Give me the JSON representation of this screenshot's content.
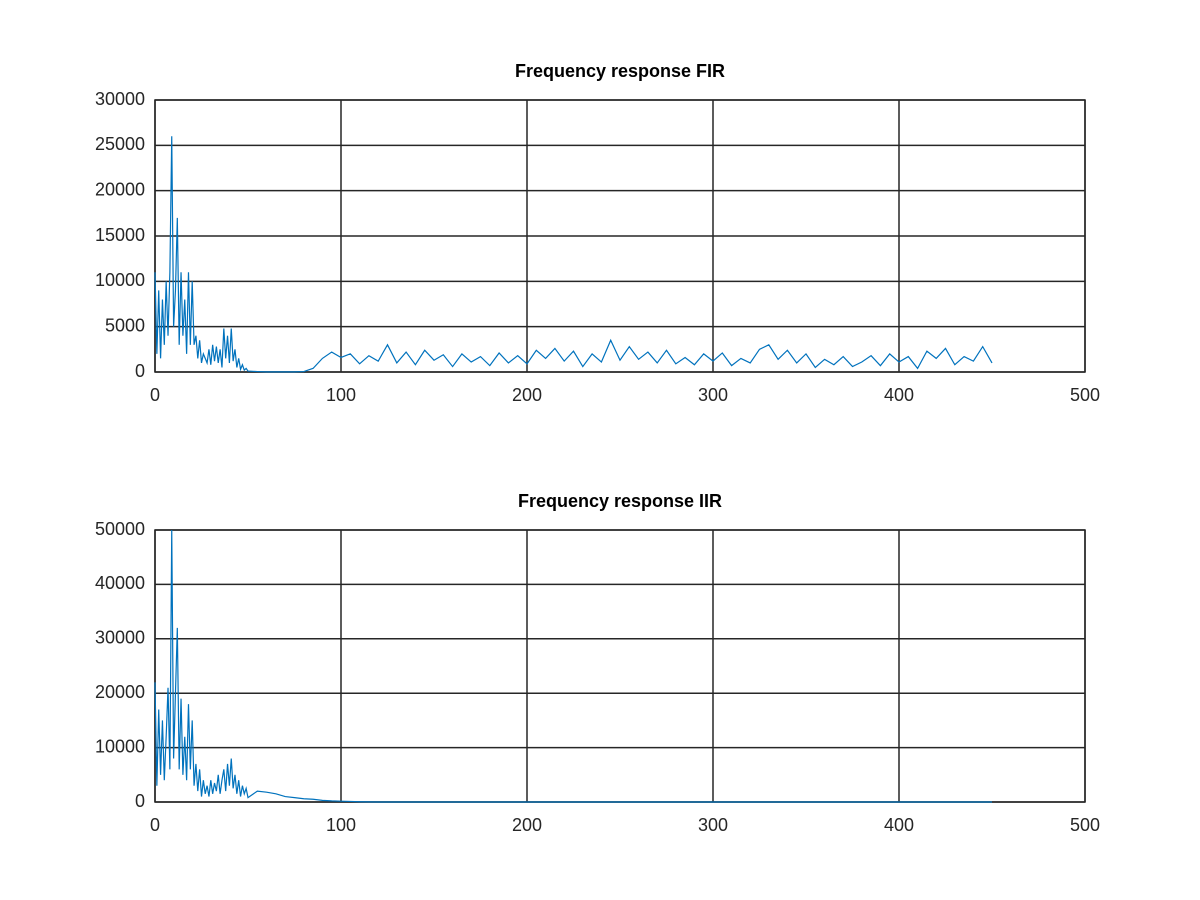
{
  "chart_data": [
    {
      "type": "line",
      "title": "Frequency response FIR",
      "x": [
        0,
        1,
        2,
        3,
        4,
        5,
        6,
        7,
        8,
        9,
        10,
        11,
        12,
        13,
        14,
        15,
        16,
        17,
        18,
        19,
        20,
        21,
        22,
        23,
        24,
        25,
        26,
        27,
        28,
        29,
        30,
        31,
        32,
        33,
        34,
        35,
        36,
        37,
        38,
        39,
        40,
        41,
        42,
        43,
        44,
        45,
        46,
        47,
        48,
        49,
        50,
        55,
        60,
        65,
        70,
        75,
        80,
        85,
        90,
        95,
        100,
        105,
        110,
        115,
        120,
        125,
        130,
        135,
        140,
        145,
        150,
        155,
        160,
        165,
        170,
        175,
        180,
        185,
        190,
        195,
        200,
        205,
        210,
        215,
        220,
        225,
        230,
        235,
        240,
        245,
        250,
        255,
        260,
        265,
        270,
        275,
        280,
        285,
        290,
        295,
        300,
        305,
        310,
        315,
        320,
        325,
        330,
        335,
        340,
        345,
        350,
        355,
        360,
        365,
        370,
        375,
        380,
        385,
        390,
        395,
        400,
        405,
        410,
        415,
        420,
        425,
        430,
        435,
        440,
        445,
        450
      ],
      "series": [
        {
          "color": "#0072bd",
          "values": [
            11000,
            2000,
            9000,
            1500,
            8000,
            3000,
            10000,
            4000,
            11000,
            26000,
            5000,
            9000,
            17000,
            3000,
            11000,
            4000,
            8000,
            2000,
            11000,
            3000,
            10000,
            3000,
            4000,
            1500,
            3500,
            1000,
            2000,
            1500,
            1000,
            2500,
            800,
            3000,
            1200,
            2800,
            1000,
            2500,
            500,
            4800,
            1500,
            4000,
            1000,
            4800,
            1200,
            2500,
            500,
            1500,
            300,
            800,
            200,
            400,
            100,
            50,
            10,
            10,
            10,
            10,
            50,
            400,
            1500,
            2200,
            1600,
            2000,
            900,
            1800,
            1200,
            3000,
            1000,
            2200,
            800,
            2400,
            1300,
            1900,
            600,
            2000,
            1100,
            1700,
            700,
            2100,
            1000,
            1800,
            900,
            2400,
            1500,
            2600,
            1200,
            2300,
            600,
            2000,
            1100,
            3500,
            1300,
            2800,
            1400,
            2200,
            1000,
            2400,
            900,
            1600,
            800,
            2000,
            1200,
            2100,
            700,
            1500,
            1000,
            2500,
            3000,
            1400,
            2400,
            1000,
            2000,
            500,
            1400,
            800,
            1700,
            600,
            1100,
            1800,
            700,
            2000,
            1100,
            1700,
            400,
            2300,
            1500,
            2600,
            800,
            1700,
            1200,
            2800,
            1000
          ]
        }
      ],
      "xlim": [
        0,
        500
      ],
      "xticks": [
        0,
        100,
        200,
        300,
        400,
        500
      ],
      "ylim": [
        0,
        30000
      ],
      "yticks": [
        0,
        5000,
        10000,
        15000,
        20000,
        25000,
        30000
      ],
      "grid": true
    },
    {
      "type": "line",
      "title": "Frequency response IIR",
      "x": [
        0,
        1,
        2,
        3,
        4,
        5,
        6,
        7,
        8,
        9,
        10,
        11,
        12,
        13,
        14,
        15,
        16,
        17,
        18,
        19,
        20,
        21,
        22,
        23,
        24,
        25,
        26,
        27,
        28,
        29,
        30,
        31,
        32,
        33,
        34,
        35,
        36,
        37,
        38,
        39,
        40,
        41,
        42,
        43,
        44,
        45,
        46,
        47,
        48,
        49,
        50,
        55,
        60,
        65,
        70,
        75,
        80,
        85,
        90,
        95,
        100,
        105,
        110,
        115,
        120,
        125,
        130,
        135,
        140,
        145,
        150,
        155,
        160,
        165,
        170,
        175,
        180,
        185,
        190,
        195,
        200,
        205,
        210,
        215,
        220,
        225,
        230,
        235,
        240,
        245,
        250,
        255,
        260,
        265,
        270,
        275,
        280,
        285,
        290,
        295,
        300,
        305,
        310,
        315,
        320,
        325,
        330,
        335,
        340,
        345,
        350,
        355,
        360,
        365,
        370,
        375,
        380,
        385,
        390,
        395,
        400,
        405,
        410,
        415,
        420,
        425,
        430,
        435,
        440,
        445,
        450
      ],
      "series": [
        {
          "color": "#0072bd",
          "values": [
            22000,
            3000,
            17000,
            5000,
            15000,
            4000,
            12000,
            21000,
            6000,
            50000,
            8000,
            20000,
            32000,
            6000,
            19000,
            5000,
            12000,
            4000,
            18000,
            6000,
            15000,
            3000,
            7000,
            2000,
            6000,
            1000,
            4000,
            1500,
            3000,
            1000,
            4000,
            1500,
            3500,
            2000,
            5000,
            1500,
            4000,
            6000,
            2000,
            7000,
            3000,
            8000,
            2500,
            5000,
            1500,
            4000,
            1000,
            3000,
            1500,
            2500,
            800,
            2000,
            1800,
            1500,
            1000,
            800,
            600,
            500,
            300,
            200,
            150,
            100,
            50,
            20,
            0,
            0,
            0,
            0,
            0,
            0,
            0,
            0,
            0,
            0,
            0,
            0,
            0,
            0,
            0,
            0,
            0,
            0,
            0,
            0,
            0,
            0,
            0,
            0,
            0,
            0,
            0,
            0,
            0,
            0,
            0,
            0,
            0,
            0,
            0,
            0,
            0,
            0,
            0,
            0,
            0,
            0,
            0,
            0,
            0,
            0,
            0,
            0,
            0,
            0,
            0,
            0,
            0,
            0,
            0,
            0,
            0,
            0,
            0,
            0,
            0,
            0,
            0,
            0,
            0,
            0,
            0
          ]
        }
      ],
      "xlim": [
        0,
        500
      ],
      "xticks": [
        0,
        100,
        200,
        300,
        400,
        500
      ],
      "ylim": [
        0,
        50000
      ],
      "yticks": [
        0,
        10000,
        20000,
        30000,
        40000,
        50000
      ],
      "grid": true
    }
  ]
}
